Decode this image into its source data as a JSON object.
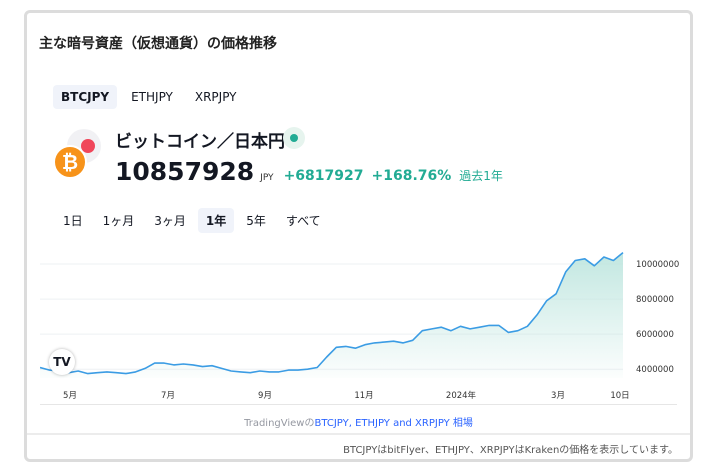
{
  "widget": {
    "title": "主な暗号資産（仮想通貨）の価格推移",
    "symbol_tabs": [
      "BTCJPY",
      "ETHJPY",
      "XRPJPY"
    ],
    "active_symbol": 0,
    "pair_name": "ビットコイン／日本円",
    "coin_glyph": "₿",
    "price": "10857928",
    "currency": "JPY",
    "change_abs": "+6817927",
    "change_pct": "+168.76%",
    "period_label": "過去1年",
    "range_tabs": [
      "1日",
      "1ヶ月",
      "3ヶ月",
      "1年",
      "5年",
      "すべて"
    ],
    "active_range": 3,
    "tv_logo_glyph": "TV",
    "attribution_prefix": "TradingViewの",
    "attribution_link": "BTCJPY, ETHJPY and XRPJPY 相場",
    "footer_note": "BTCJPYはbitFlyer、ETHJPY、XRPJPYはKrakenの価格を表示しています。"
  },
  "colors": {
    "accent_green": "#22ab94",
    "line_blue": "#3b9ce4",
    "area_fill": "#bfe6df",
    "btc_orange": "#f7931a",
    "link_blue": "#2962ff"
  },
  "chart_data": {
    "type": "area",
    "x_tick_labels": [
      "5月",
      "7月",
      "9月",
      "11月",
      "2024年",
      "3月",
      "10日"
    ],
    "y_tick_labels": [
      "10000000",
      "8000000",
      "6000000",
      "4000000"
    ],
    "y_tick_values": [
      10000000,
      8000000,
      6000000,
      4000000
    ],
    "ylim": [
      3500000,
      11200000
    ],
    "grid": true,
    "series": [
      {
        "x": [
          0,
          6,
          12,
          18,
          24,
          30,
          36,
          42,
          48,
          54,
          60,
          66,
          72,
          78,
          84,
          90,
          96,
          102,
          108,
          114,
          120,
          126,
          132,
          138,
          144,
          150,
          156,
          162,
          168,
          174,
          180,
          186,
          192,
          198,
          204,
          210,
          216,
          222,
          228,
          234,
          240,
          246,
          252,
          258,
          264,
          270,
          276,
          282,
          288,
          294,
          300,
          306,
          312,
          318,
          324,
          330,
          336,
          342,
          348,
          354,
          360,
          366
        ],
        "values": [
          4100000,
          3950000,
          3900000,
          3800000,
          3900000,
          3750000,
          3800000,
          3850000,
          3800000,
          3750000,
          3850000,
          4050000,
          4350000,
          4350000,
          4250000,
          4300000,
          4250000,
          4150000,
          4200000,
          4050000,
          3900000,
          3850000,
          3800000,
          3900000,
          3850000,
          3850000,
          3950000,
          3950000,
          4000000,
          4100000,
          4700000,
          5250000,
          5300000,
          5200000,
          5400000,
          5500000,
          5550000,
          5600000,
          5500000,
          5650000,
          6200000,
          6300000,
          6400000,
          6200000,
          6450000,
          6300000,
          6400000,
          6500000,
          6500000,
          6100000,
          6200000,
          6450000,
          7100000,
          7900000,
          8300000,
          9550000,
          10200000,
          10300000,
          9900000,
          10400000,
          10200000,
          10650000
        ]
      }
    ]
  }
}
